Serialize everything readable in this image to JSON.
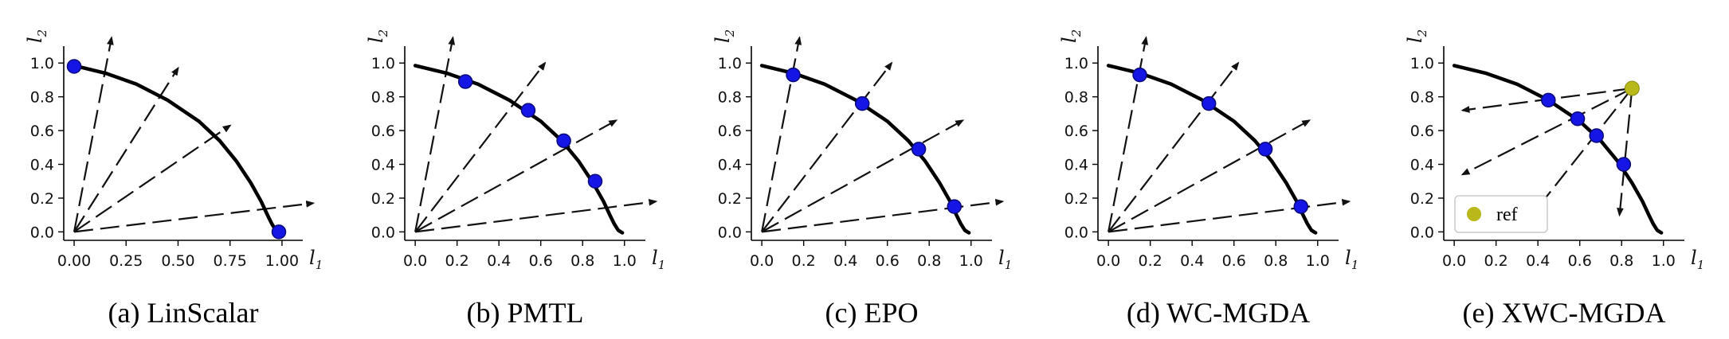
{
  "chart_data": [
    {
      "type": "line",
      "caption": "(a) LinScalar",
      "xlabel": "l1",
      "ylabel": "l2",
      "xlim": [
        -0.05,
        1.1
      ],
      "ylim": [
        -0.05,
        1.1
      ],
      "xticks": [
        "0.00",
        "0.25",
        "0.50",
        "0.75",
        "1.00"
      ],
      "yticks": [
        "0.0",
        "0.2",
        "0.4",
        "0.6",
        "0.8",
        "1.0"
      ],
      "front": {
        "x": [
          0,
          0.15,
          0.3,
          0.45,
          0.6,
          0.7,
          0.78,
          0.85,
          0.9,
          0.93,
          0.95,
          0.97,
          0.985,
          0.99
        ],
        "y": [
          0.985,
          0.94,
          0.875,
          0.78,
          0.655,
          0.54,
          0.42,
          0.29,
          0.18,
          0.1,
          0.05,
          0.01,
          -0.002,
          -0.005
        ]
      },
      "points": [
        {
          "x": 0.0,
          "y": 0.98
        },
        {
          "x": 0.985,
          "y": 0.0
        }
      ],
      "arrows": [
        {
          "x1": 0,
          "y1": 0,
          "x2": 0.18,
          "y2": 1.15
        },
        {
          "x1": 0,
          "y1": 0,
          "x2": 0.5,
          "y2": 0.97
        },
        {
          "x1": 0,
          "y1": 0,
          "x2": 0.75,
          "y2": 0.63
        },
        {
          "x1": 0,
          "y1": 0,
          "x2": 1.15,
          "y2": 0.17
        }
      ]
    },
    {
      "type": "line",
      "caption": "(b) PMTL",
      "xlabel": "l1",
      "ylabel": "l2",
      "xlim": [
        -0.05,
        1.1
      ],
      "ylim": [
        -0.05,
        1.1
      ],
      "xticks": [
        "0.0",
        "0.2",
        "0.4",
        "0.6",
        "0.8",
        "1.0"
      ],
      "yticks": [
        "0.0",
        "0.2",
        "0.4",
        "0.6",
        "0.8",
        "1.0"
      ],
      "front": {
        "x": [
          0,
          0.15,
          0.3,
          0.45,
          0.6,
          0.7,
          0.78,
          0.85,
          0.9,
          0.93,
          0.95,
          0.97,
          0.985,
          0.99
        ],
        "y": [
          0.985,
          0.94,
          0.875,
          0.78,
          0.655,
          0.54,
          0.42,
          0.29,
          0.18,
          0.1,
          0.05,
          0.01,
          -0.002,
          -0.005
        ]
      },
      "points": [
        {
          "x": 0.24,
          "y": 0.89
        },
        {
          "x": 0.54,
          "y": 0.72
        },
        {
          "x": 0.71,
          "y": 0.54
        },
        {
          "x": 0.86,
          "y": 0.3
        }
      ],
      "arrows": [
        {
          "x1": 0,
          "y1": 0,
          "x2": 0.18,
          "y2": 1.15
        },
        {
          "x1": 0,
          "y1": 0,
          "x2": 0.62,
          "y2": 1.0
        },
        {
          "x1": 0,
          "y1": 0,
          "x2": 0.96,
          "y2": 0.66
        },
        {
          "x1": 0,
          "y1": 0,
          "x2": 1.15,
          "y2": 0.18
        }
      ]
    },
    {
      "type": "line",
      "caption": "(c) EPO",
      "xlabel": "l1",
      "ylabel": "l2",
      "xlim": [
        -0.05,
        1.1
      ],
      "ylim": [
        -0.05,
        1.1
      ],
      "xticks": [
        "0.0",
        "0.2",
        "0.4",
        "0.6",
        "0.8",
        "1.0"
      ],
      "yticks": [
        "0.0",
        "0.2",
        "0.4",
        "0.6",
        "0.8",
        "1.0"
      ],
      "front": {
        "x": [
          0,
          0.15,
          0.3,
          0.45,
          0.6,
          0.7,
          0.78,
          0.85,
          0.9,
          0.93,
          0.95,
          0.97,
          0.985,
          0.99
        ],
        "y": [
          0.985,
          0.94,
          0.875,
          0.78,
          0.655,
          0.54,
          0.42,
          0.29,
          0.18,
          0.1,
          0.05,
          0.01,
          -0.002,
          -0.005
        ]
      },
      "points": [
        {
          "x": 0.15,
          "y": 0.93
        },
        {
          "x": 0.48,
          "y": 0.76
        },
        {
          "x": 0.75,
          "y": 0.49
        },
        {
          "x": 0.92,
          "y": 0.15
        }
      ],
      "arrows": [
        {
          "x1": 0,
          "y1": 0,
          "x2": 0.18,
          "y2": 1.15
        },
        {
          "x1": 0,
          "y1": 0,
          "x2": 0.62,
          "y2": 1.0
        },
        {
          "x1": 0,
          "y1": 0,
          "x2": 0.96,
          "y2": 0.66
        },
        {
          "x1": 0,
          "y1": 0,
          "x2": 1.15,
          "y2": 0.18
        }
      ]
    },
    {
      "type": "line",
      "caption": "(d) WC-MGDA",
      "xlabel": "l1",
      "ylabel": "l2",
      "xlim": [
        -0.05,
        1.1
      ],
      "ylim": [
        -0.05,
        1.1
      ],
      "xticks": [
        "0.0",
        "0.2",
        "0.4",
        "0.6",
        "0.8",
        "1.0"
      ],
      "yticks": [
        "0.0",
        "0.2",
        "0.4",
        "0.6",
        "0.8",
        "1.0"
      ],
      "front": {
        "x": [
          0,
          0.15,
          0.3,
          0.45,
          0.6,
          0.7,
          0.78,
          0.85,
          0.9,
          0.93,
          0.95,
          0.97,
          0.985,
          0.99
        ],
        "y": [
          0.985,
          0.94,
          0.875,
          0.78,
          0.655,
          0.54,
          0.42,
          0.29,
          0.18,
          0.1,
          0.05,
          0.01,
          -0.002,
          -0.005
        ]
      },
      "points": [
        {
          "x": 0.15,
          "y": 0.93
        },
        {
          "x": 0.48,
          "y": 0.76
        },
        {
          "x": 0.75,
          "y": 0.49
        },
        {
          "x": 0.92,
          "y": 0.15
        }
      ],
      "arrows": [
        {
          "x1": 0,
          "y1": 0,
          "x2": 0.18,
          "y2": 1.15
        },
        {
          "x1": 0,
          "y1": 0,
          "x2": 0.62,
          "y2": 1.0
        },
        {
          "x1": 0,
          "y1": 0,
          "x2": 0.96,
          "y2": 0.66
        },
        {
          "x1": 0,
          "y1": 0,
          "x2": 1.15,
          "y2": 0.18
        }
      ]
    },
    {
      "type": "line",
      "caption": "(e) XWC-MGDA",
      "xlabel": "l1",
      "ylabel": "l2",
      "xlim": [
        -0.05,
        1.1
      ],
      "ylim": [
        -0.05,
        1.1
      ],
      "xticks": [
        "0.0",
        "0.2",
        "0.4",
        "0.6",
        "0.8",
        "1.0"
      ],
      "yticks": [
        "0.0",
        "0.2",
        "0.4",
        "0.6",
        "0.8",
        "1.0"
      ],
      "front": {
        "x": [
          0,
          0.15,
          0.3,
          0.45,
          0.6,
          0.7,
          0.78,
          0.85,
          0.9,
          0.93,
          0.95,
          0.97,
          0.985,
          0.99
        ],
        "y": [
          0.985,
          0.94,
          0.875,
          0.78,
          0.655,
          0.54,
          0.42,
          0.29,
          0.18,
          0.1,
          0.05,
          0.01,
          -0.002,
          -0.005
        ]
      },
      "points": [
        {
          "x": 0.45,
          "y": 0.78
        },
        {
          "x": 0.59,
          "y": 0.67
        },
        {
          "x": 0.68,
          "y": 0.57
        },
        {
          "x": 0.81,
          "y": 0.4
        }
      ],
      "reference": {
        "x": 0.85,
        "y": 0.85,
        "label": "ref"
      },
      "arrows": [
        {
          "x1": 0.85,
          "y1": 0.85,
          "x2": 0.04,
          "y2": 0.72
        },
        {
          "x1": 0.85,
          "y1": 0.85,
          "x2": 0.04,
          "y2": 0.34
        },
        {
          "x1": 0.85,
          "y1": 0.85,
          "x2": 0.34,
          "y2": 0.05
        },
        {
          "x1": 0.85,
          "y1": 0.85,
          "x2": 0.79,
          "y2": 0.1
        }
      ]
    }
  ],
  "colors": {
    "point": "#1515e6",
    "point_edge": "#0a0a7a",
    "reference": "#b8b81a",
    "front": "#000000",
    "arrow": "#111111"
  }
}
